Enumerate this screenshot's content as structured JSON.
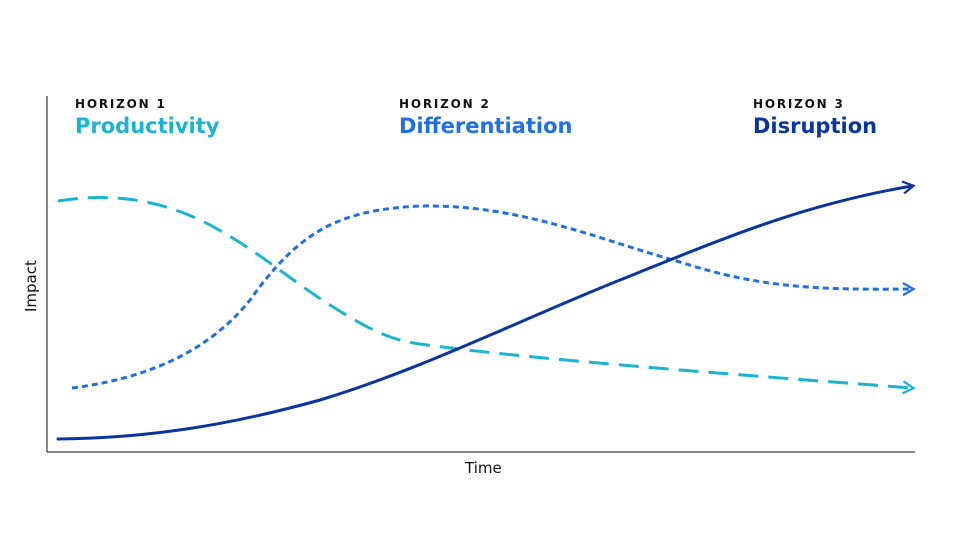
{
  "horizons": [
    {
      "eyebrow": "HORIZON 1",
      "title": "Productivity"
    },
    {
      "eyebrow": "HORIZON 2",
      "title": "Differentiation"
    },
    {
      "eyebrow": "HORIZON 3",
      "title": "Disruption"
    }
  ],
  "axes": {
    "x_label": "Time",
    "y_label": "Impact"
  },
  "colors": {
    "productivity": "#18b4d2",
    "differentiation": "#1f6fe5",
    "disruption": "#0a35a0",
    "axis": "#111111"
  },
  "line_styles": {
    "productivity": "long-dash",
    "differentiation": "short-dash",
    "disruption": "solid"
  }
}
